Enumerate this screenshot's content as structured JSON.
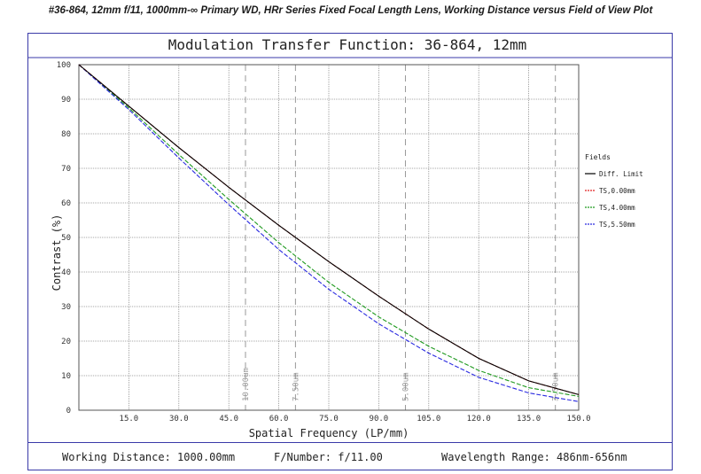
{
  "page_title": "#36-864, 12mm f/11, 1000mm-∞ Primary WD, HRr Series Fixed Focal Length Lens, Working Distance versus Field of View Plot",
  "footer": {
    "working_distance": "Working Distance: 1000.00mm",
    "f_number": "F/Number: f/11.00",
    "wavelength_range": "Wavelength Range: 486nm-656nm"
  },
  "colors": {
    "frame": "#3a3aa8",
    "diff_limit": "#000000",
    "ts_0": "#e02020",
    "ts_4": "#1f9a1f",
    "ts_5_5": "#2a2ae0"
  },
  "chart_data": {
    "type": "line",
    "title": "Modulation Transfer Function: 36-864, 12mm",
    "xlabel": "Spatial Frequency (LP/mm)",
    "ylabel": "Contrast (%)",
    "xlim": [
      0,
      150
    ],
    "ylim": [
      0,
      100
    ],
    "xticks": [
      15,
      30,
      45,
      60,
      75,
      90,
      105,
      120,
      135,
      150
    ],
    "xtick_labels": [
      "15.0",
      "30.0",
      "45.0",
      "60.0",
      "75.0",
      "90.0",
      "105.0",
      "120.0",
      "135.0",
      "150.0"
    ],
    "yticks": [
      0,
      10,
      20,
      30,
      40,
      50,
      60,
      70,
      80,
      90,
      100
    ],
    "ytick_labels": [
      "0",
      "10",
      "20",
      "30",
      "40",
      "50",
      "60",
      "70",
      "80",
      "90",
      "100"
    ],
    "grid": true,
    "legend_title": "Fields",
    "legend_position": "right",
    "reference_lines": [
      {
        "x": 50,
        "label": "10.00um"
      },
      {
        "x": 65,
        "label": "7.50um"
      },
      {
        "x": 98,
        "label": "5.00um"
      },
      {
        "x": 143,
        "label": "3.50um"
      }
    ],
    "x": [
      0,
      15,
      30,
      45,
      60,
      75,
      90,
      105,
      120,
      135,
      150
    ],
    "series": [
      {
        "name": "Diff. Limit",
        "style": "solid",
        "values": [
          100,
          88,
          76,
          64.5,
          53.5,
          43,
          33,
          23.5,
          15,
          8.5,
          4.5
        ]
      },
      {
        "name": "TS,0.00mm",
        "style": "dashed",
        "values": [
          100,
          88,
          76,
          64.5,
          53.5,
          43,
          33,
          23.5,
          15,
          8.5,
          4.5
        ]
      },
      {
        "name": "TS,4.00mm",
        "style": "dashed",
        "values": [
          100,
          87.5,
          74,
          61,
          48.5,
          37,
          27,
          18.5,
          11.5,
          6.5,
          4
        ]
      },
      {
        "name": "TS,5.50mm",
        "style": "dashed",
        "values": [
          100,
          87,
          73,
          59.5,
          46.5,
          35,
          25,
          16.5,
          9.5,
          5,
          2.5
        ]
      }
    ]
  }
}
